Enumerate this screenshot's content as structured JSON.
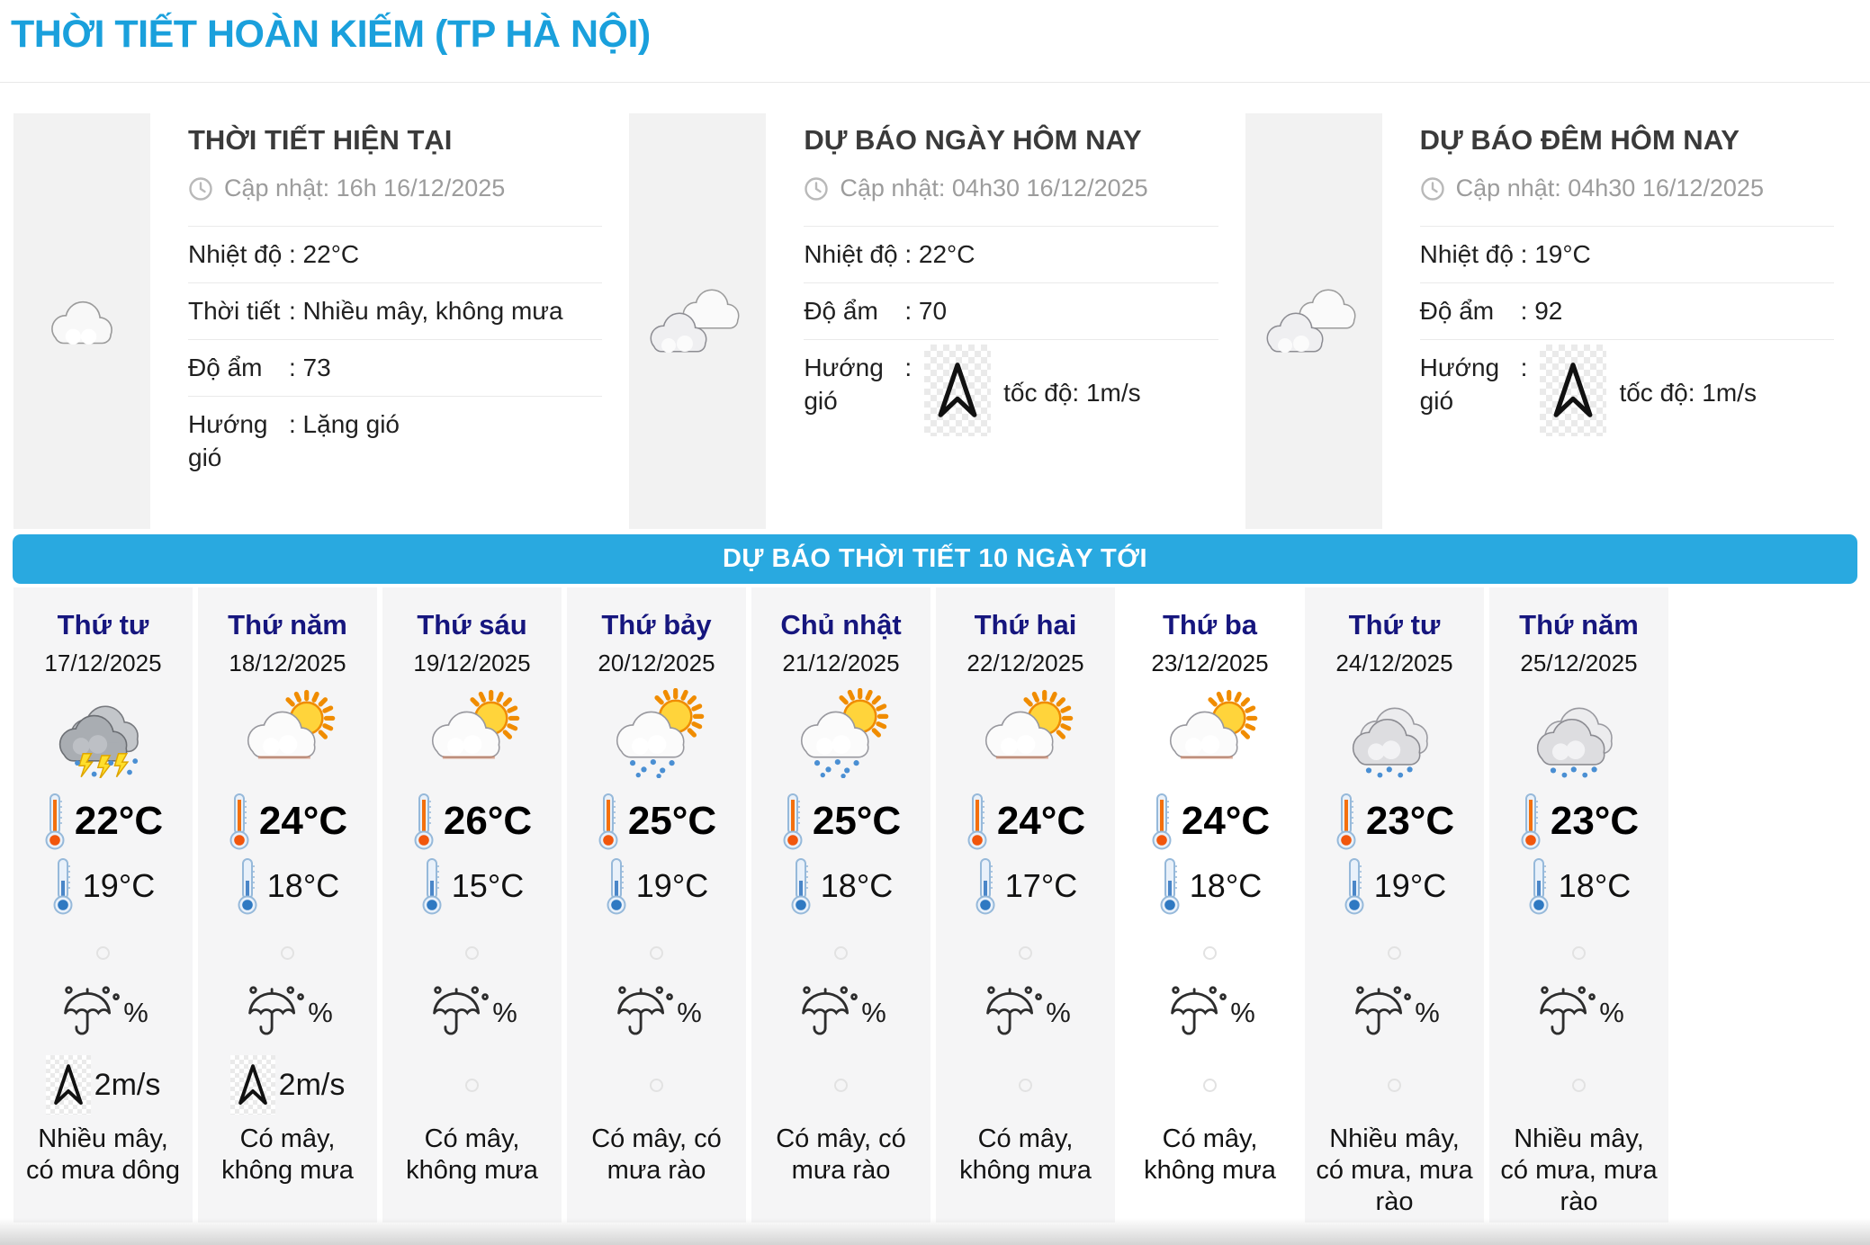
{
  "page": {
    "title": "THỜI TIẾT HOÀN KIẾM (TP HÀ NỘI)"
  },
  "colors": {
    "accent_blue": "#1aa0dc",
    "banner_blue": "#29a9e0",
    "day_name_navy": "#16167e",
    "column_bg": "#f5f5f6",
    "highlighted_column_bg": "#ffffff"
  },
  "panels": [
    {
      "title": "THỜI TIẾT HIỆN TẠI",
      "updated": "Cập nhật: 16h 16/12/2025",
      "icon": "cloud",
      "rows": [
        {
          "label": "Nhiệt độ",
          "value": ": 22°C"
        },
        {
          "label": "Thời tiết",
          "value": ": Nhiều mây, không mưa"
        },
        {
          "label": "Độ ẩm",
          "value": ": 73"
        },
        {
          "label": "Hướng gió",
          "value": ": Lặng gió"
        }
      ]
    },
    {
      "title": "DỰ BÁO NGÀY HÔM NAY",
      "updated": "Cập nhật: 04h30 16/12/2025",
      "icon": "clouds",
      "rows": [
        {
          "label": "Nhiệt độ",
          "value": ": 22°C"
        },
        {
          "label": "Độ ẩm",
          "value": ": 70"
        },
        {
          "label": "Hướng gió",
          "value": ":",
          "wind": {
            "speed_label": "tốc độ: 1m/s"
          }
        }
      ]
    },
    {
      "title": "DỰ BÁO ĐÊM HÔM NAY",
      "updated": "Cập nhật: 04h30 16/12/2025",
      "icon": "clouds",
      "rows": [
        {
          "label": "Nhiệt độ",
          "value": ": 19°C"
        },
        {
          "label": "Độ ẩm",
          "value": ": 92"
        },
        {
          "label": "Hướng gió",
          "value": ":",
          "wind": {
            "speed_label": "tốc độ: 1m/s"
          }
        }
      ]
    }
  ],
  "banner": {
    "label": "DỰ BÁO THỜI TIẾT 10 NGÀY TỚI"
  },
  "forecast": {
    "days": [
      {
        "day": "Thứ tư",
        "date": "17/12/2025",
        "icon": "thunderstorm",
        "high": "22°C",
        "low": "19°C",
        "precip": "%",
        "wind": "2m/s",
        "desc": "Nhiều mây, có mưa dông",
        "selected": false
      },
      {
        "day": "Thứ năm",
        "date": "18/12/2025",
        "icon": "sun-cloud",
        "high": "24°C",
        "low": "18°C",
        "precip": "%",
        "wind": "2m/s",
        "desc": "Có mây, không mưa",
        "selected": false
      },
      {
        "day": "Thứ sáu",
        "date": "19/12/2025",
        "icon": "sun-cloud",
        "high": "26°C",
        "low": "15°C",
        "precip": "%",
        "wind": null,
        "desc": "Có mây, không mưa",
        "selected": false
      },
      {
        "day": "Thứ bảy",
        "date": "20/12/2025",
        "icon": "sun-cloud-rain",
        "high": "25°C",
        "low": "19°C",
        "precip": "%",
        "wind": null,
        "desc": "Có mây, có mưa rào",
        "selected": false
      },
      {
        "day": "Chủ nhật",
        "date": "21/12/2025",
        "icon": "sun-cloud-rain",
        "high": "25°C",
        "low": "18°C",
        "precip": "%",
        "wind": null,
        "desc": "Có mây, có mưa rào",
        "selected": false
      },
      {
        "day": "Thứ hai",
        "date": "22/12/2025",
        "icon": "sun-cloud",
        "high": "24°C",
        "low": "17°C",
        "precip": "%",
        "wind": null,
        "desc": "Có mây, không mưa",
        "selected": false
      },
      {
        "day": "Thứ ba",
        "date": "23/12/2025",
        "icon": "sun-cloud",
        "high": "24°C",
        "low": "18°C",
        "precip": "%",
        "wind": null,
        "desc": "Có mây, không mưa",
        "selected": true
      },
      {
        "day": "Thứ tư",
        "date": "24/12/2025",
        "icon": "cloud-rain",
        "high": "23°C",
        "low": "19°C",
        "precip": "%",
        "wind": null,
        "desc": "Nhiều mây, có mưa, mưa rào",
        "selected": false
      },
      {
        "day": "Thứ năm",
        "date": "25/12/2025",
        "icon": "cloud-rain",
        "high": "23°C",
        "low": "18°C",
        "precip": "%",
        "wind": null,
        "desc": "Nhiều mây, có mưa, mưa rào",
        "selected": false
      }
    ]
  }
}
